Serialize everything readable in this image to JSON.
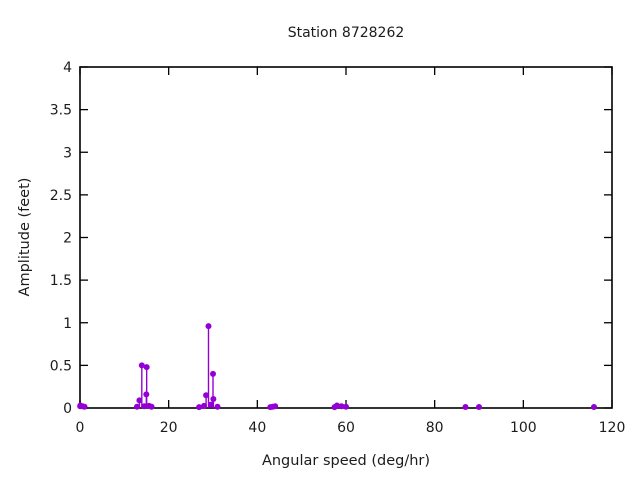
{
  "chart_data": {
    "type": "scatter",
    "style": "stem",
    "title": "Station 8728262",
    "xlabel": "Angular speed (deg/hr)",
    "ylabel": "Amplitude (feet)",
    "xlim": [
      0,
      120
    ],
    "ylim": [
      0,
      4
    ],
    "xticks": [
      0,
      20,
      40,
      60,
      80,
      100,
      120
    ],
    "yticks": [
      0,
      0.5,
      1,
      1.5,
      2,
      2.5,
      3,
      3.5,
      4
    ],
    "grid": false,
    "legend": "none",
    "marker_color": "#9400d3",
    "axis_color": "#000000",
    "points": [
      [
        0.041,
        0.02
      ],
      [
        0.082,
        0.03
      ],
      [
        0.544,
        0.02
      ],
      [
        1.016,
        0.015
      ],
      [
        12.854,
        0.015
      ],
      [
        13.399,
        0.09
      ],
      [
        13.943,
        0.5
      ],
      [
        14.492,
        0.02
      ],
      [
        14.959,
        0.16
      ],
      [
        15.041,
        0.48
      ],
      [
        15.585,
        0.025
      ],
      [
        16.139,
        0.015
      ],
      [
        26.868,
        0.01
      ],
      [
        27.968,
        0.025
      ],
      [
        28.439,
        0.15
      ],
      [
        28.984,
        0.96
      ],
      [
        29.528,
        0.04
      ],
      [
        30.0,
        0.4
      ],
      [
        30.082,
        0.105
      ],
      [
        31.016,
        0.015
      ],
      [
        42.927,
        0.01
      ],
      [
        43.476,
        0.015
      ],
      [
        44.025,
        0.02
      ],
      [
        57.424,
        0.01
      ],
      [
        57.968,
        0.03
      ],
      [
        58.984,
        0.02
      ],
      [
        60.0,
        0.015
      ],
      [
        86.952,
        0.012
      ],
      [
        90.0,
        0.012
      ],
      [
        115.936,
        0.012
      ]
    ]
  }
}
